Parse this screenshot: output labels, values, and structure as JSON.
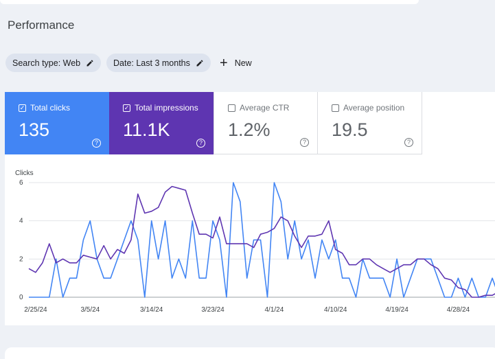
{
  "page": {
    "title": "Performance"
  },
  "filters": {
    "search_type": "Search type: Web",
    "date": "Date: Last 3 months",
    "new_label": "New"
  },
  "metrics": {
    "clicks": {
      "label": "Total clicks",
      "value": "135",
      "checked": true,
      "color": "#4285f4"
    },
    "impressions": {
      "label": "Total impressions",
      "value": "11.1K",
      "checked": true,
      "color": "#5e35b1"
    },
    "ctr": {
      "label": "Average CTR",
      "value": "1.2%",
      "checked": false
    },
    "position": {
      "label": "Average position",
      "value": "19.5",
      "checked": false
    }
  },
  "icons": [
    "pencil-icon",
    "plus-icon",
    "checkbox-icon",
    "help-icon"
  ],
  "chart_data": {
    "type": "line",
    "ylabel": "Clicks",
    "yticks": [
      0,
      2,
      4,
      6
    ],
    "ylim": [
      0,
      6
    ],
    "xtick_labels": [
      "2/25/24",
      "3/5/24",
      "3/14/24",
      "3/23/24",
      "4/1/24",
      "4/10/24",
      "4/19/24",
      "4/28/24"
    ],
    "xtick_index": [
      1,
      9,
      18,
      27,
      36,
      45,
      54,
      63
    ],
    "grid": true,
    "series": [
      {
        "name": "Total clicks",
        "color": "#4285f4",
        "values": [
          0,
          0,
          0,
          0,
          2,
          0,
          1,
          1,
          3,
          4,
          2,
          1,
          1,
          2,
          3,
          4,
          3,
          0,
          4,
          2,
          4,
          1,
          2,
          1,
          4,
          1,
          1,
          4,
          3,
          0,
          6,
          5,
          1,
          3,
          3,
          0,
          6,
          5,
          2,
          4,
          2,
          3,
          1,
          3,
          2,
          3,
          1,
          1,
          0,
          2,
          1,
          1,
          1,
          0,
          2,
          0,
          1,
          2,
          2,
          2,
          1,
          0,
          0,
          1,
          0,
          1,
          0,
          0,
          1,
          0
        ]
      },
      {
        "name": "Total impressions",
        "color": "#5e35b1",
        "values": [
          1.5,
          1.3,
          1.8,
          2.8,
          1.8,
          2.0,
          1.8,
          1.8,
          2.2,
          2.1,
          2.0,
          2.7,
          2.0,
          2.5,
          2.3,
          3.0,
          5.4,
          4.4,
          4.5,
          4.7,
          5.5,
          5.8,
          5.7,
          5.6,
          4.4,
          3.3,
          3.3,
          3.1,
          4.2,
          2.8,
          2.8,
          2.8,
          2.8,
          2.6,
          3.3,
          3.4,
          3.6,
          4.2,
          4.0,
          3.2,
          2.6,
          3.2,
          3.2,
          3.3,
          4.0,
          2.5,
          2.3,
          1.7,
          1.7,
          2.0,
          2.0,
          1.7,
          1.5,
          1.3,
          1.5,
          1.7,
          1.7,
          2.0,
          2.0,
          1.7,
          1.5,
          1.0,
          0.9,
          0.5,
          0.4,
          0.0,
          0.0,
          0.1,
          0.1,
          0.3
        ]
      }
    ]
  }
}
